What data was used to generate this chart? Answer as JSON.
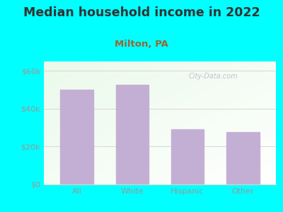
{
  "title": "Median household income in 2022",
  "subtitle": "Milton, PA",
  "categories": [
    "All",
    "White",
    "Hispanic",
    "Other"
  ],
  "values": [
    50000,
    52500,
    29000,
    27500
  ],
  "bar_color": "#c4afd4",
  "background_color": "#00FFFF",
  "plot_bg_color": "#f0faf0",
  "title_color": "#333333",
  "subtitle_color": "#996633",
  "tick_label_color": "#999999",
  "grid_color": "#d8d8cc",
  "ylim": [
    0,
    65000
  ],
  "yticks": [
    0,
    20000,
    40000,
    60000
  ],
  "ytick_labels": [
    "$0",
    "$20k",
    "$40k",
    "$60k"
  ],
  "watermark": "City-Data.com",
  "title_fontsize": 12.5,
  "subtitle_fontsize": 9.5,
  "tick_fontsize": 8
}
